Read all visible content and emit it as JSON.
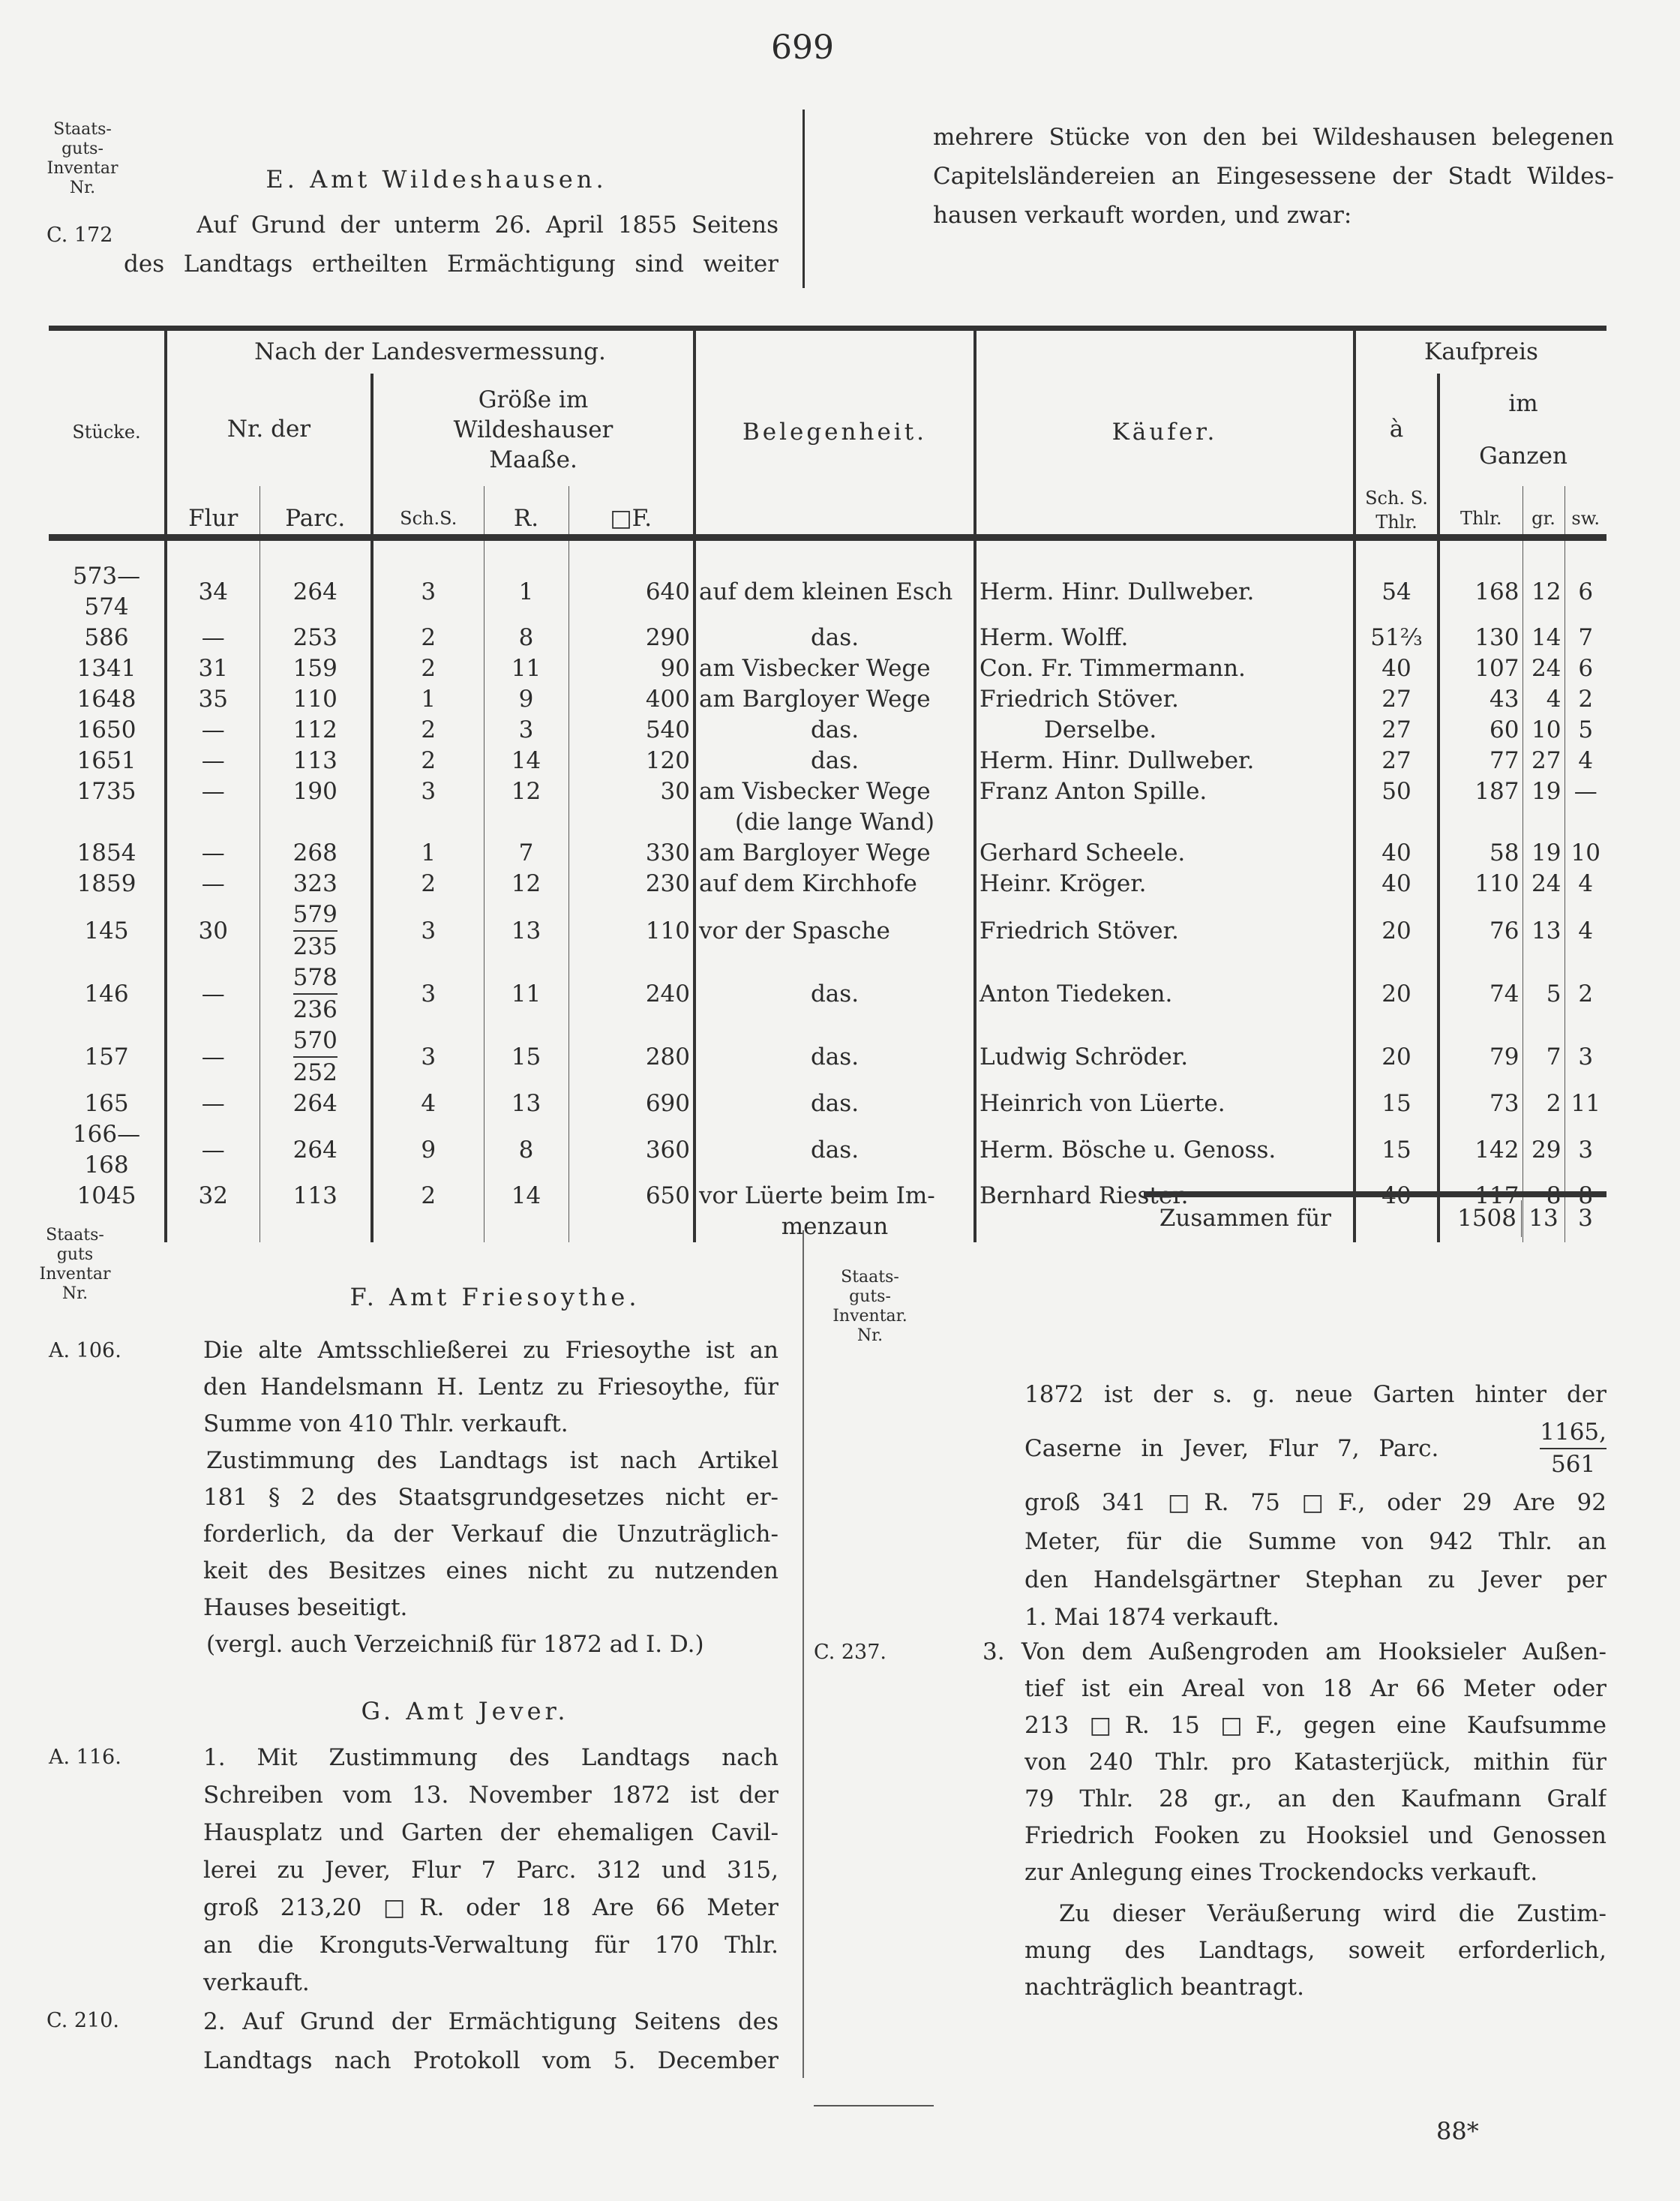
{
  "page_number": "699",
  "header": {
    "margin_label": [
      "Staats-",
      "guts-",
      "Inventar",
      "Nr."
    ],
    "margin_ref": "C. 172",
    "section_title": "E. Amt Wildeshausen.",
    "left_lines": [
      "Auf Grund der unterm 26. April 1855 Seitens",
      "des Landtags ertheilten Ermächtigung sind weiter"
    ],
    "right_lines": [
      "mehrere Stücke von den bei Wildeshausen belegenen",
      "Capitelsländereien an Eingesessene der Stadt Wildes-",
      "hausen verkauft worden, und zwar:"
    ]
  },
  "table": {
    "headers": {
      "stuecke": "Stücke.",
      "landesvermessung": "Nach der Landesvermessung.",
      "nr_der": "Nr. der",
      "groesse": "Größe im Wildeshauser Maaße.",
      "flur": "Flur",
      "parc": "Parc.",
      "sch_s": "Sch.S.",
      "r": "R.",
      "qf": "□F.",
      "belegenheit": "Belegenheit.",
      "kaeufer": "Käufer.",
      "kaufpreis": "Kaufpreis",
      "a": "à",
      "a_unit": "Sch. S. Thlr.",
      "im_ganzen": "im Ganzen",
      "thlr": "Thlr.",
      "gr": "gr.",
      "sw": "sw."
    },
    "rows": [
      {
        "stuecke": "573—574",
        "flur": "34",
        "parc": "264",
        "sch_s": "3",
        "r": "1",
        "qf": "640",
        "belegenheit": "auf dem kleinen Esch",
        "kaeufer": "Herm. Hinr. Dullweber.",
        "a_thlr": "54",
        "thlr": "168",
        "gr": "12",
        "sw": "6"
      },
      {
        "stuecke": "586",
        "flur": "—",
        "parc": "253",
        "sch_s": "2",
        "r": "8",
        "qf": "290",
        "belegenheit": "das.",
        "kaeufer": "Herm. Wolff.",
        "a_thlr": "51⅔",
        "thlr": "130",
        "gr": "14",
        "sw": "7"
      },
      {
        "stuecke": "1341",
        "flur": "31",
        "parc": "159",
        "sch_s": "2",
        "r": "11",
        "qf": "90",
        "belegenheit": "am Visbecker Wege",
        "kaeufer": "Con. Fr. Timmermann.",
        "a_thlr": "40",
        "thlr": "107",
        "gr": "24",
        "sw": "6"
      },
      {
        "stuecke": "1648",
        "flur": "35",
        "parc": "110",
        "sch_s": "1",
        "r": "9",
        "qf": "400",
        "belegenheit": "am Bargloyer Wege",
        "kaeufer": "Friedrich Stöver.",
        "a_thlr": "27",
        "thlr": "43",
        "gr": "4",
        "sw": "2"
      },
      {
        "stuecke": "1650",
        "flur": "—",
        "parc": "112",
        "sch_s": "2",
        "r": "3",
        "qf": "540",
        "belegenheit": "das.",
        "kaeufer": "Derselbe.",
        "a_thlr": "27",
        "thlr": "60",
        "gr": "10",
        "sw": "5"
      },
      {
        "stuecke": "1651",
        "flur": "—",
        "parc": "113",
        "sch_s": "2",
        "r": "14",
        "qf": "120",
        "belegenheit": "das.",
        "kaeufer": "Herm. Hinr. Dullweber.",
        "a_thlr": "27",
        "thlr": "77",
        "gr": "27",
        "sw": "4"
      },
      {
        "stuecke": "1735",
        "flur": "—",
        "parc": "190",
        "sch_s": "3",
        "r": "12",
        "qf": "30",
        "belegenheit": "am Visbecker Wege",
        "belegenheit2": "(die lange Wand)",
        "kaeufer": "Franz Anton Spille.",
        "a_thlr": "50",
        "thlr": "187",
        "gr": "19",
        "sw": "—"
      },
      {
        "stuecke": "1854",
        "flur": "—",
        "parc": "268",
        "sch_s": "1",
        "r": "7",
        "qf": "330",
        "belegenheit": "am Bargloyer Wege",
        "kaeufer": "Gerhard Scheele.",
        "a_thlr": "40",
        "thlr": "58",
        "gr": "19",
        "sw": "10"
      },
      {
        "stuecke": "1859",
        "flur": "—",
        "parc": "323",
        "sch_s": "2",
        "r": "12",
        "qf": "230",
        "belegenheit": "auf dem Kirchhofe",
        "kaeufer": "Heinr. Kröger.",
        "a_thlr": "40",
        "thlr": "110",
        "gr": "24",
        "sw": "4"
      },
      {
        "stuecke": "145",
        "flur": "30",
        "parc_top": "579",
        "parc_bottom": "235",
        "sch_s": "3",
        "r": "13",
        "qf": "110",
        "belegenheit": "vor der Spasche",
        "kaeufer": "Friedrich Stöver.",
        "a_thlr": "20",
        "thlr": "76",
        "gr": "13",
        "sw": "4"
      },
      {
        "stuecke": "146",
        "flur": "—",
        "parc_top": "578",
        "parc_bottom": "236",
        "sch_s": "3",
        "r": "11",
        "qf": "240",
        "belegenheit": "das.",
        "kaeufer": "Anton Tiedeken.",
        "a_thlr": "20",
        "thlr": "74",
        "gr": "5",
        "sw": "2"
      },
      {
        "stuecke": "157",
        "flur": "—",
        "parc_top": "570",
        "parc_bottom": "252",
        "sch_s": "3",
        "r": "15",
        "qf": "280",
        "belegenheit": "das.",
        "kaeufer": "Ludwig Schröder.",
        "a_thlr": "20",
        "thlr": "79",
        "gr": "7",
        "sw": "3"
      },
      {
        "stuecke": "165",
        "flur": "—",
        "parc": "264",
        "sch_s": "4",
        "r": "13",
        "qf": "690",
        "belegenheit": "das.",
        "kaeufer": "Heinrich von Lüerte.",
        "a_thlr": "15",
        "thlr": "73",
        "gr": "2",
        "sw": "11"
      },
      {
        "stuecke": "166—168",
        "flur": "—",
        "parc": "264",
        "sch_s": "9",
        "r": "8",
        "qf": "360",
        "belegenheit": "das.",
        "kaeufer": "Herm. Bösche u. Genoss.",
        "a_thlr": "15",
        "thlr": "142",
        "gr": "29",
        "sw": "3"
      },
      {
        "stuecke": "1045",
        "flur": "32",
        "parc": "113",
        "sch_s": "2",
        "r": "14",
        "qf": "650",
        "belegenheit": "vor Lüerte beim Im-",
        "belegenheit2": "menzaun",
        "kaeufer": "Bernhard Riester.",
        "a_thlr": "40",
        "thlr": "117",
        "gr": "8",
        "sw": "8"
      }
    ],
    "total": {
      "label": "Zusammen für",
      "thlr": "1508",
      "gr": "13",
      "sw": "3"
    }
  },
  "section_f": {
    "margin_label": [
      "Staats-",
      "guts",
      "Inventar",
      "Nr."
    ],
    "ref": "A. 106.",
    "title": "F. Amt Friesoythe.",
    "lines": [
      "Die alte Amtsschließerei zu Friesoythe ist an",
      "den Handelsmann H. Lentz zu Friesoythe, für die",
      "Summe von 410 Thlr. verkauft.",
      "Zustimmung des Landtags ist nach Artikel",
      "181 § 2 des Staatsgrundgesetzes nicht er-",
      "forderlich, da der Verkauf die Unzuträglich-",
      "keit des Besitzes eines nicht zu nutzenden",
      "Hauses beseitigt.",
      "(vergl. auch Verzeichniß für 1872 ad I. D.)"
    ]
  },
  "section_g": {
    "title": "G. Amt Jever.",
    "item1": {
      "ref": "A. 116.",
      "lines": [
        "1. Mit Zustimmung des Landtags nach",
        "Schreiben vom 13. November 1872 ist der",
        "Hausplatz und Garten der ehemaligen Cavil-",
        "lerei zu Jever, Flur 7 Parc. 312 und 315,",
        "groß 213,20 □R. oder 18 Are 66 Meter",
        "an die Kronguts-Verwaltung für 170 Thlr.",
        "verkauft."
      ]
    },
    "item2": {
      "ref": "C. 210.",
      "lines": [
        "2. Auf Grund der Ermächtigung Seitens des",
        "Landtags nach Protokoll vom 5. December"
      ],
      "cont_margin_label": [
        "Staats-",
        "guts-",
        "Inventar.",
        "Nr."
      ],
      "cont_line1": "1872 ist der s. g. neue Garten hinter der",
      "cont_line2": "Caserne in Jever, Flur 7, Parc.",
      "parc_top": "1165,",
      "parc_bottom": "561",
      "cont_lines": [
        "groß 341 □R. 75 □F., oder 29 Are 92",
        "Meter, für die Summe von 942 Thlr. an",
        "den Handelsgärtner Stephan zu Jever per",
        "1. Mai 1874 verkauft."
      ]
    },
    "item3": {
      "ref": "C. 237.",
      "lines": [
        "3. Von dem Außengroden am Hooksieler Außen-",
        "tief ist ein Areal von 18 Ar 66 Meter oder",
        "213 □R. 15 □F., gegen eine Kaufsumme",
        "von 240 Thlr. pro Katasterjück, mithin für",
        "79 Thlr. 28 gr., an den Kaufmann Gralf",
        "Friedrich Fooken zu Hooksiel und Genossen",
        "zur Anlegung eines Trockendocks verkauft."
      ],
      "closing": [
        "Zu dieser Veräußerung wird die Zustim-",
        "mung des Landtags, soweit erforderlich,",
        "nachträglich beantragt."
      ]
    }
  },
  "footer": {
    "signature": "88*"
  }
}
